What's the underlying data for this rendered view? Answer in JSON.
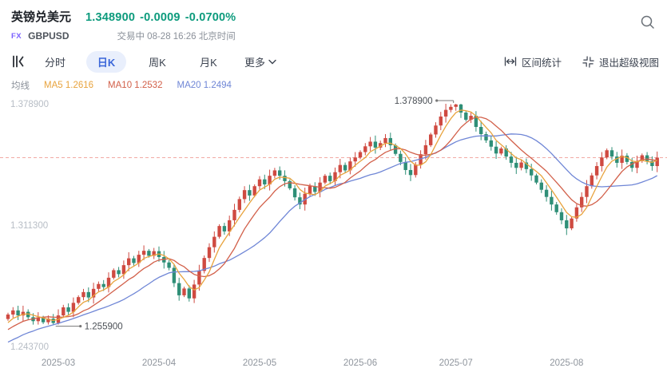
{
  "header": {
    "title": "英镑兑美元",
    "price": "1.348900",
    "change": "-0.0009",
    "change_pct": "-0.0700%",
    "market_label": "FX",
    "symbol": "GBPUSD",
    "status": "交易中 08-28 16:26 北京时间"
  },
  "toolbar": {
    "tabs": [
      {
        "label": "分时"
      },
      {
        "label": "日K"
      },
      {
        "label": "周K"
      },
      {
        "label": "月K"
      }
    ],
    "more_label": "更多",
    "range_stats_label": "区间统计",
    "exit_superview_label": "退出超级视图"
  },
  "legend": {
    "title": "均线",
    "items": [
      {
        "name": "MA5",
        "value": "1.2616",
        "color": "#e8a33d"
      },
      {
        "name": "MA10",
        "value": "1.2532",
        "color": "#d2604a"
      },
      {
        "name": "MA20",
        "value": "1.2494",
        "color": "#6f86d6"
      }
    ]
  },
  "chart_data": {
    "type": "candlestick",
    "symbol": "GBPUSD",
    "interval": "daily",
    "title": "GBPUSD daily candlesticks with MA5/MA10/MA20",
    "y_axis": {
      "min": 1.2437,
      "max": 1.3789,
      "labels": [
        {
          "value": 1.3789,
          "label": "1.378900"
        },
        {
          "value": 1.3113,
          "label": "1.311300"
        },
        {
          "value": 1.2437,
          "label": "1.243700"
        }
      ]
    },
    "x_ticks": [
      {
        "index": 10,
        "label": "2025-03"
      },
      {
        "index": 30,
        "label": "2025-04"
      },
      {
        "index": 50,
        "label": "2025-05"
      },
      {
        "index": 70,
        "label": "2025-06"
      },
      {
        "index": 89,
        "label": "2025-07"
      },
      {
        "index": 111,
        "label": "2025-08"
      }
    ],
    "current_price": 1.3489,
    "annotations": {
      "max": {
        "index": 89,
        "value": 1.3789,
        "label": "1.378900"
      },
      "min": {
        "index": 9,
        "value": 1.2559,
        "label": "1.255900"
      }
    },
    "colors": {
      "up": "#cf4a41",
      "down": "#2f8f77",
      "ma5": "#e8a33d",
      "ma10": "#d2604a",
      "ma20": "#6f86d6",
      "current_line": "#f2aaa4",
      "axis_y_text": "#b7bdc5",
      "axis_x_text": "#8f959d",
      "annotation_text": "#4a4f55",
      "annotation_line": "#777777"
    },
    "ma_periods": [
      5,
      10,
      20
    ],
    "pre_closes": [
      1.233,
      1.2348,
      1.2362,
      1.234,
      1.2372,
      1.239,
      1.2378,
      1.241,
      1.2432,
      1.242,
      1.2452,
      1.247,
      1.2462,
      1.249,
      1.2512,
      1.253,
      1.2522,
      1.255,
      1.2572,
      1.259
    ],
    "closes": [
      1.2615,
      1.2638,
      1.261,
      1.263,
      1.26,
      1.2578,
      1.2598,
      1.2572,
      1.2592,
      1.2568,
      1.261,
      1.2655,
      1.263,
      1.268,
      1.2712,
      1.274,
      1.271,
      1.2758,
      1.2785,
      1.2768,
      1.282,
      1.2862,
      1.284,
      1.289,
      1.2928,
      1.2902,
      1.2948,
      1.297,
      1.2942,
      1.2968,
      1.2935,
      1.2905,
      1.2875,
      1.279,
      1.2722,
      1.276,
      1.2705,
      1.2782,
      1.2858,
      1.293,
      1.299,
      1.3048,
      1.3108,
      1.3078,
      1.314,
      1.3198,
      1.3258,
      1.3308,
      1.3278,
      1.333,
      1.3368,
      1.334,
      1.3388,
      1.3418,
      1.3388,
      1.3358,
      1.3318,
      1.3268,
      1.3228,
      1.3288,
      1.333,
      1.3298,
      1.335,
      1.3388,
      1.3358,
      1.3408,
      1.3448,
      1.3418,
      1.3468,
      1.349,
      1.352,
      1.3552,
      1.3578,
      1.3545,
      1.357,
      1.3598,
      1.3558,
      1.351,
      1.3465,
      1.342,
      1.3392,
      1.345,
      1.3508,
      1.3558,
      1.3618,
      1.3668,
      1.3718,
      1.3755,
      1.3772,
      1.3785,
      1.374,
      1.37,
      1.3722,
      1.366,
      1.362,
      1.3585,
      1.355,
      1.3512,
      1.354,
      1.3495,
      1.346,
      1.3432,
      1.3462,
      1.3425,
      1.339,
      1.335,
      1.331,
      1.327,
      1.3228,
      1.3185,
      1.314,
      1.3095,
      1.315,
      1.3212,
      1.327,
      1.333,
      1.339,
      1.3442,
      1.349,
      1.353,
      1.3495,
      1.346,
      1.35,
      1.3465,
      1.3432,
      1.347,
      1.3502,
      1.347,
      1.3442,
      1.3489
    ],
    "overrides": [
      {
        "i": 9,
        "low": 1.2559
      },
      {
        "i": 89,
        "high": 1.3789
      },
      {
        "i": 111,
        "low": 1.3058
      }
    ]
  }
}
